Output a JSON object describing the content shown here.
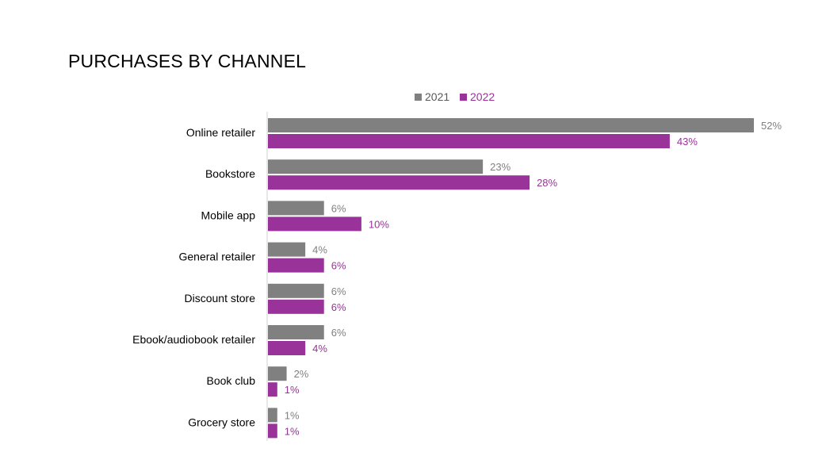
{
  "chart_data": {
    "type": "bar",
    "orientation": "horizontal",
    "title": "PURCHASES BY CHANNEL",
    "categories": [
      "Online retailer",
      "Bookstore",
      "Mobile app",
      "General retailer",
      "Discount store",
      "Ebook/audiobook retailer",
      "Book club",
      "Grocery store"
    ],
    "series": [
      {
        "name": "2021",
        "color": "#808080",
        "values": [
          52,
          23,
          6,
          4,
          6,
          6,
          2,
          1
        ],
        "labels": [
          "52%",
          "23%",
          "6%",
          "4%",
          "6%",
          "6%",
          "2%",
          "1%"
        ]
      },
      {
        "name": "2022",
        "color": "#993399",
        "values": [
          43,
          28,
          10,
          6,
          6,
          4,
          1,
          1
        ],
        "labels": [
          "43%",
          "28%",
          "10%",
          "6%",
          "6%",
          "4%",
          "1%",
          "1%"
        ]
      }
    ],
    "xlim": [
      0,
      52
    ],
    "xlabel": "",
    "ylabel": "",
    "grid": false,
    "legend_position": "top-center"
  }
}
